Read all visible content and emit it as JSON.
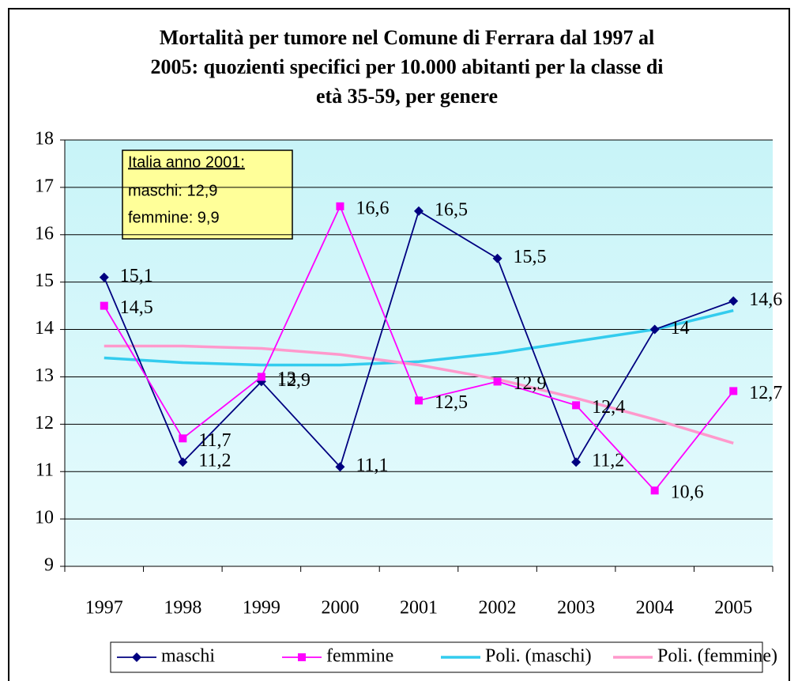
{
  "chart_data": {
    "type": "line",
    "title": [
      "Mortalità per tumore nel Comune di Ferrara dal 1997 al",
      "2005: quozienti specifici per 10.000 abitanti per la classe di",
      "età 35-59, per genere"
    ],
    "annotation": [
      "Italia anno 2001:",
      "maschi: 12,9",
      "femmine: 9,9"
    ],
    "categories": [
      "1997",
      "1998",
      "1999",
      "2000",
      "2001",
      "2002",
      "2003",
      "2004",
      "2005"
    ],
    "series": [
      {
        "name": "maschi",
        "color": "#000080",
        "marker": "diamond",
        "values": [
          15.1,
          11.2,
          12.9,
          11.1,
          16.5,
          15.5,
          11.2,
          14,
          14.6
        ],
        "value_labels": [
          "15,1",
          "11,2",
          "12,9",
          "11,1",
          "16,5",
          "15,5",
          "11,2",
          "14",
          "14,6"
        ]
      },
      {
        "name": "femmine",
        "color": "#ff00ff",
        "marker": "square",
        "values": [
          14.5,
          11.7,
          13,
          16.6,
          12.5,
          12.9,
          12.4,
          10.6,
          12.7
        ],
        "value_labels": [
          "14,5",
          "11,7",
          "13",
          "16,6",
          "12,5",
          "12,9",
          "12,4",
          "10,6",
          "12,7"
        ]
      },
      {
        "name": "Poli. (maschi)",
        "color": "#33ccee",
        "values": [
          13.4,
          13.3,
          13.25,
          13.25,
          13.32,
          13.5,
          13.75,
          14.0,
          14.4
        ]
      },
      {
        "name": "Poli. (femmine)",
        "color": "#ff99cc",
        "values": [
          13.65,
          13.65,
          13.6,
          13.47,
          13.25,
          12.95,
          12.55,
          12.1,
          11.6
        ]
      }
    ],
    "ylim": [
      9,
      18
    ],
    "yticks": [
      9,
      10,
      11,
      12,
      13,
      14,
      15,
      16,
      17,
      18
    ],
    "grid": true,
    "legend": "bottom"
  }
}
